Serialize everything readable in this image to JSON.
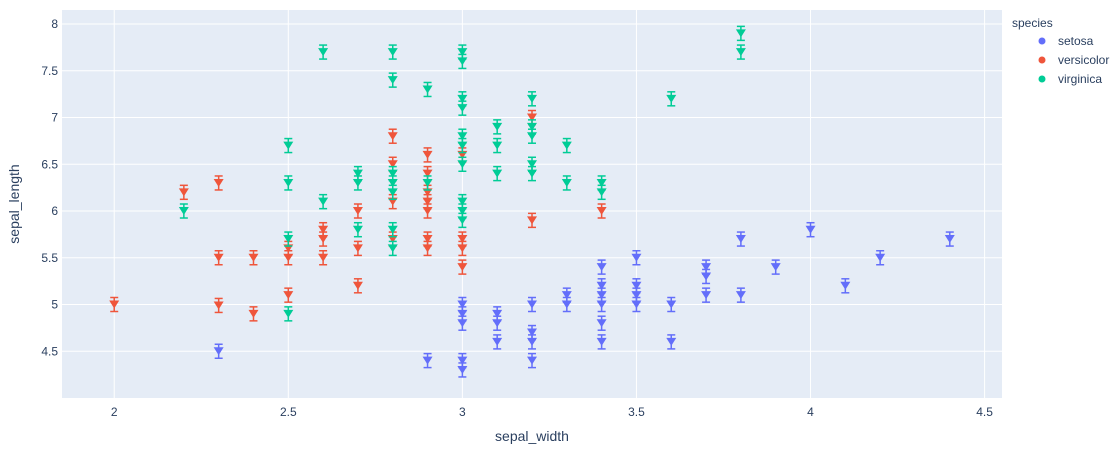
{
  "chart_data": {
    "type": "scatter",
    "xlabel": "sepal_width",
    "ylabel": "sepal_length",
    "xlim": [
      1.85,
      4.55
    ],
    "ylim": [
      4.0,
      8.15
    ],
    "xticks": [
      2,
      2.5,
      3,
      3.5,
      4,
      4.5
    ],
    "xtick_labels": [
      "2",
      "2.5",
      "3",
      "3.5",
      "4",
      "4.5"
    ],
    "yticks": [
      4.5,
      5,
      5.5,
      6,
      6.5,
      7,
      7.5,
      8
    ],
    "ytick_labels": [
      "4.5",
      "5",
      "5.5",
      "6",
      "6.5",
      "7",
      "7.5",
      "8"
    ],
    "grid": true,
    "marker": "triangle-down with error bars",
    "legend": {
      "title": "species",
      "placement": "top-right-outside"
    },
    "series": [
      {
        "name": "setosa",
        "color": "#636efa",
        "points": [
          [
            2.3,
            4.5
          ],
          [
            2.9,
            4.4
          ],
          [
            3.0,
            4.4
          ],
          [
            3.0,
            4.3
          ],
          [
            3.0,
            4.8
          ],
          [
            3.0,
            4.9
          ],
          [
            3.0,
            5.0
          ],
          [
            3.1,
            4.6
          ],
          [
            3.1,
            4.8
          ],
          [
            3.1,
            4.9
          ],
          [
            3.2,
            4.4
          ],
          [
            3.2,
            4.6
          ],
          [
            3.2,
            4.7
          ],
          [
            3.2,
            5.0
          ],
          [
            3.3,
            5.0
          ],
          [
            3.3,
            5.1
          ],
          [
            3.4,
            4.6
          ],
          [
            3.4,
            4.8
          ],
          [
            3.4,
            5.0
          ],
          [
            3.4,
            5.1
          ],
          [
            3.4,
            5.2
          ],
          [
            3.4,
            5.4
          ],
          [
            3.5,
            5.0
          ],
          [
            3.5,
            5.1
          ],
          [
            3.5,
            5.2
          ],
          [
            3.5,
            5.5
          ],
          [
            3.6,
            4.6
          ],
          [
            3.6,
            5.0
          ],
          [
            3.7,
            5.1
          ],
          [
            3.7,
            5.3
          ],
          [
            3.7,
            5.4
          ],
          [
            3.8,
            5.1
          ],
          [
            3.8,
            5.7
          ],
          [
            3.9,
            5.4
          ],
          [
            4.0,
            5.8
          ],
          [
            4.1,
            5.2
          ],
          [
            4.2,
            5.5
          ],
          [
            4.4,
            5.7
          ]
        ]
      },
      {
        "name": "versicolor",
        "color": "#ef553b",
        "points": [
          [
            2.0,
            5.0
          ],
          [
            2.2,
            6.2
          ],
          [
            2.3,
            4.99
          ],
          [
            2.3,
            5.5
          ],
          [
            2.3,
            6.3
          ],
          [
            2.4,
            4.9
          ],
          [
            2.4,
            5.5
          ],
          [
            2.5,
            5.1
          ],
          [
            2.5,
            5.5
          ],
          [
            2.5,
            5.6
          ],
          [
            2.6,
            5.5
          ],
          [
            2.6,
            5.7
          ],
          [
            2.6,
            5.8
          ],
          [
            2.7,
            5.2
          ],
          [
            2.7,
            5.6
          ],
          [
            2.7,
            6.0
          ],
          [
            2.8,
            5.7
          ],
          [
            2.8,
            6.1
          ],
          [
            2.8,
            6.5
          ],
          [
            2.8,
            6.8
          ],
          [
            2.9,
            5.6
          ],
          [
            2.9,
            5.7
          ],
          [
            2.9,
            6.0
          ],
          [
            2.9,
            6.1
          ],
          [
            2.9,
            6.2
          ],
          [
            2.9,
            6.4
          ],
          [
            2.9,
            6.6
          ],
          [
            3.0,
            5.4
          ],
          [
            3.0,
            5.6
          ],
          [
            3.0,
            5.7
          ],
          [
            3.0,
            6.6
          ],
          [
            3.2,
            5.9
          ],
          [
            3.2,
            7.0
          ],
          [
            3.4,
            6.0
          ]
        ]
      },
      {
        "name": "virginica",
        "color": "#00cc96",
        "points": [
          [
            2.2,
            6.0
          ],
          [
            2.5,
            4.9
          ],
          [
            2.5,
            5.7
          ],
          [
            2.5,
            6.3
          ],
          [
            2.5,
            6.7
          ],
          [
            2.6,
            6.1
          ],
          [
            2.6,
            7.7
          ],
          [
            2.7,
            5.8
          ],
          [
            2.7,
            6.3
          ],
          [
            2.7,
            6.4
          ],
          [
            2.8,
            5.6
          ],
          [
            2.8,
            5.8
          ],
          [
            2.8,
            6.2
          ],
          [
            2.8,
            6.3
          ],
          [
            2.8,
            6.4
          ],
          [
            2.8,
            7.4
          ],
          [
            2.8,
            7.7
          ],
          [
            2.9,
            6.3
          ],
          [
            2.9,
            7.3
          ],
          [
            3.0,
            5.9
          ],
          [
            3.0,
            6.0
          ],
          [
            3.0,
            6.1
          ],
          [
            3.0,
            6.5
          ],
          [
            3.0,
            6.7
          ],
          [
            3.0,
            6.8
          ],
          [
            3.0,
            7.1
          ],
          [
            3.0,
            7.2
          ],
          [
            3.0,
            7.6
          ],
          [
            3.0,
            7.7
          ],
          [
            3.1,
            6.4
          ],
          [
            3.1,
            6.7
          ],
          [
            3.1,
            6.9
          ],
          [
            3.2,
            6.4
          ],
          [
            3.2,
            6.5
          ],
          [
            3.2,
            6.8
          ],
          [
            3.2,
            6.9
          ],
          [
            3.2,
            7.2
          ],
          [
            3.3,
            6.3
          ],
          [
            3.3,
            6.7
          ],
          [
            3.4,
            6.2
          ],
          [
            3.4,
            6.3
          ],
          [
            3.6,
            7.2
          ],
          [
            3.8,
            7.7
          ],
          [
            3.8,
            7.9
          ]
        ]
      }
    ]
  }
}
